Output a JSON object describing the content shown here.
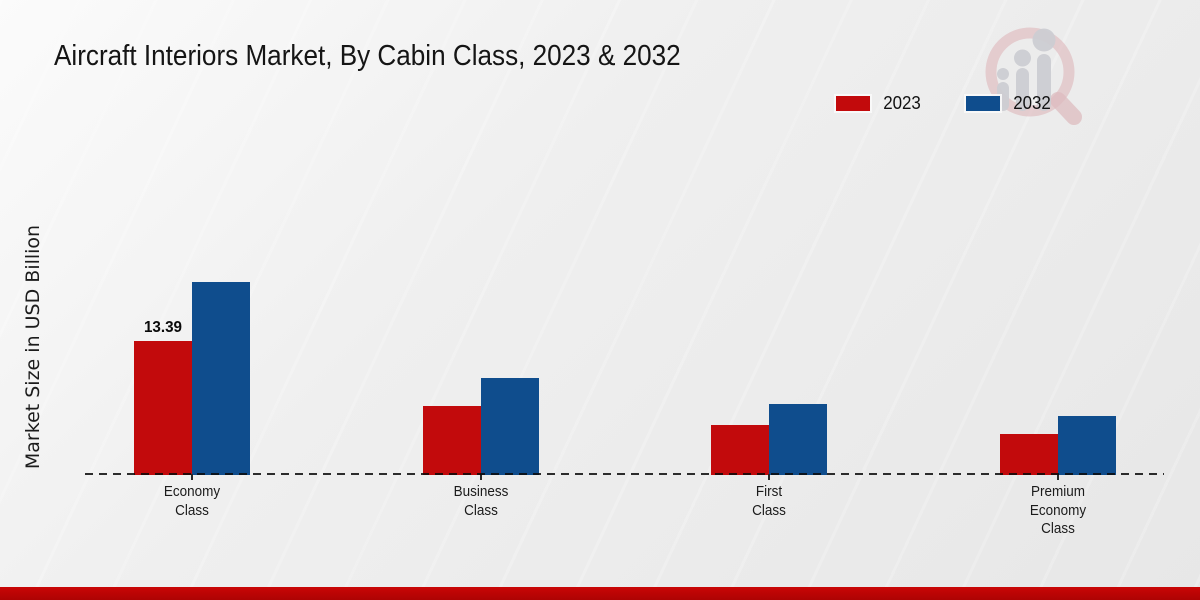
{
  "title": "Aircraft Interiors Market, By Cabin Class, 2023 & 2032",
  "y_axis_label": "Market Size in USD Billion",
  "legend": {
    "items": [
      {
        "label": "2023",
        "color": "#c20a0c"
      },
      {
        "label": "2032",
        "color": "#0f4d8d"
      }
    ]
  },
  "chart_data": {
    "type": "bar",
    "categories": [
      "Economy Class",
      "Business Class",
      "First Class",
      "Premium Economy Class"
    ],
    "series": [
      {
        "name": "2023",
        "color": "#c20a0c",
        "values": [
          13.39,
          6.9,
          5.0,
          4.1
        ]
      },
      {
        "name": "2032",
        "color": "#0f4d8d",
        "values": [
          19.3,
          9.7,
          7.1,
          5.9
        ]
      }
    ],
    "data_labels": [
      {
        "category_index": 0,
        "series_index": 0,
        "text": "13.39"
      }
    ],
    "title": "Aircraft Interiors Market, By Cabin Class, 2023 & 2032",
    "xlabel": "",
    "ylabel": "Market Size in USD Billion",
    "ylim": [
      0,
      20
    ],
    "grid": false,
    "legend_position": "top-right",
    "baseline_style": "dashed"
  },
  "footer": {
    "accent_bar_color": "#b20505"
  },
  "watermark_name": "market-research-logo-watermark"
}
